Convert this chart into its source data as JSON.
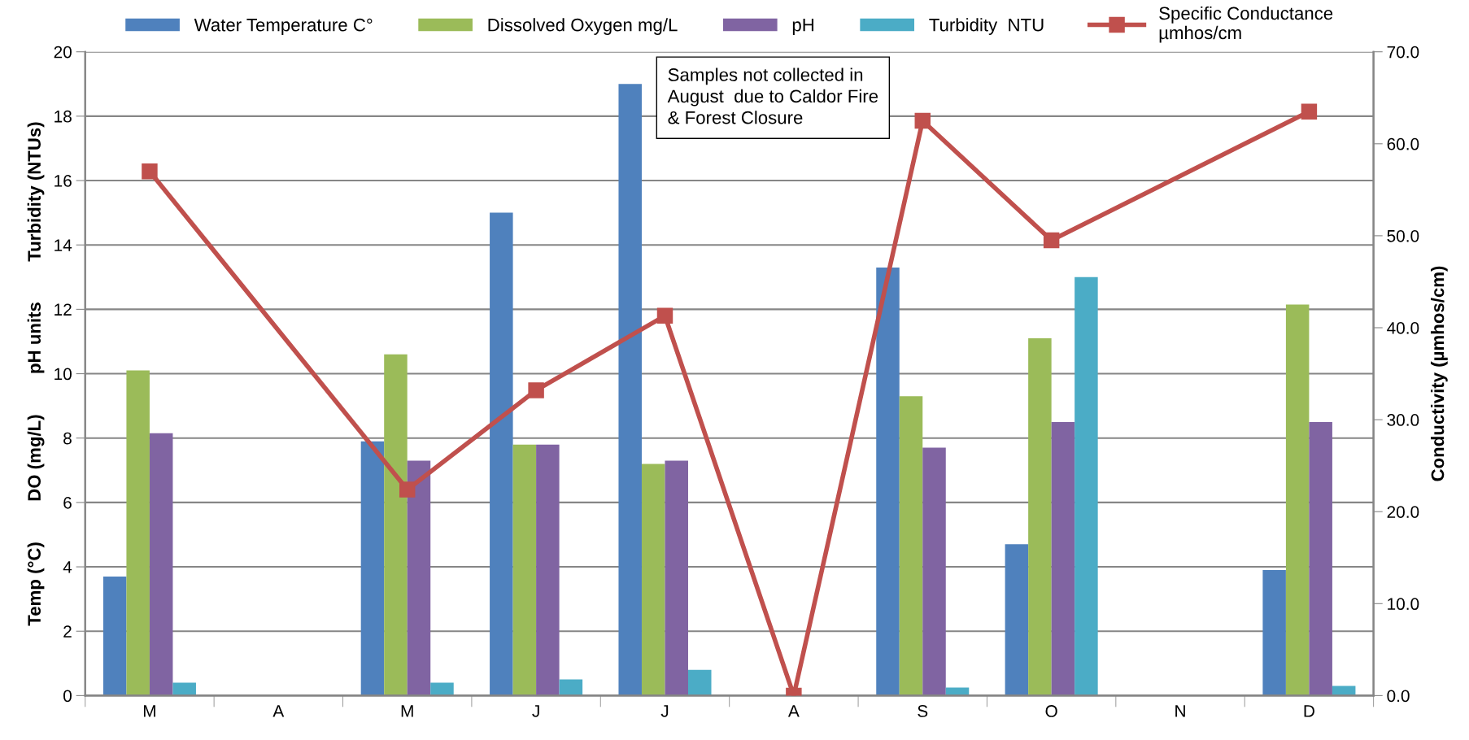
{
  "chart_data": {
    "type": "bar",
    "categories": [
      "M",
      "A",
      "M",
      "J",
      "J",
      "A",
      "S",
      "O",
      "N",
      "D"
    ],
    "ylabel": "Temp (°C)        DO (mg/L)        pH units        Turbidity (NTUs)",
    "y2label": "Conductivity (µmhos/cm)",
    "series": [
      {
        "name": "Water Temperature C°",
        "color": "#4f81bd",
        "values": [
          3.7,
          null,
          7.9,
          15,
          19,
          null,
          13.3,
          4.7,
          null,
          3.9
        ]
      },
      {
        "name": "Dissolved Oxygen mg/L",
        "color": "#9bbb59",
        "values": [
          10.1,
          null,
          10.6,
          7.8,
          7.2,
          null,
          9.3,
          11.1,
          null,
          12.15
        ]
      },
      {
        "name": "pH",
        "color": "#8064a2",
        "values": [
          8.15,
          null,
          7.3,
          7.8,
          7.3,
          null,
          7.7,
          8.5,
          null,
          8.5
        ]
      },
      {
        "name": "Turbidity  NTU",
        "color": "#4bacc6",
        "values": [
          0.4,
          null,
          0.4,
          0.5,
          0.8,
          null,
          0.25,
          13,
          null,
          0.3
        ]
      },
      {
        "name": "Specific Conductance\nµmhos/cm",
        "color": "#c0504d",
        "type": "line",
        "axis": "y2",
        "values": [
          57.0,
          null,
          22.4,
          33.2,
          41.3,
          0,
          62.5,
          49.5,
          null,
          63.5
        ]
      }
    ],
    "ylim": [
      0,
      20
    ],
    "yticks": [
      0,
      2,
      4,
      6,
      8,
      10,
      12,
      14,
      16,
      18,
      20
    ],
    "y2lim": [
      0,
      70
    ],
    "y2ticks": [
      {
        "value": 0,
        "label": "0.0"
      },
      {
        "value": 10,
        "label": "10.0"
      },
      {
        "value": 20,
        "label": "20.0"
      },
      {
        "value": 30,
        "label": "30.0"
      },
      {
        "value": 40,
        "label": "40.0"
      },
      {
        "value": 50,
        "label": "50.0"
      },
      {
        "value": 60,
        "label": "60.0"
      },
      {
        "value": 70,
        "label": "70.0"
      }
    ],
    "grid": "y",
    "legend": "top",
    "marker": "square",
    "annotations": [
      "Samples not collected in\nAugust  due to Caldor Fire\n& Forest Closure"
    ]
  }
}
